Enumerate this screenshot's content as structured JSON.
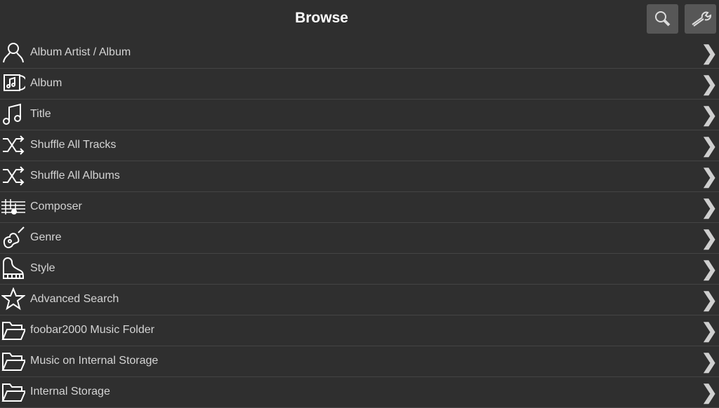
{
  "header": {
    "title": "Browse",
    "search_icon": "search-icon",
    "settings_icon": "wrench-icon"
  },
  "items": [
    {
      "label": "Album Artist / Album",
      "icon": "person"
    },
    {
      "label": "Album",
      "icon": "album"
    },
    {
      "label": "Title",
      "icon": "note"
    },
    {
      "label": "Shuffle All Tracks",
      "icon": "shuffle"
    },
    {
      "label": "Shuffle All Albums",
      "icon": "shuffle"
    },
    {
      "label": "Composer",
      "icon": "staff"
    },
    {
      "label": "Genre",
      "icon": "guitar"
    },
    {
      "label": "Style",
      "icon": "piano"
    },
    {
      "label": "Advanced Search",
      "icon": "star"
    },
    {
      "label": "foobar2000 Music Folder",
      "icon": "folder"
    },
    {
      "label": "Music on Internal Storage",
      "icon": "folder"
    },
    {
      "label": "Internal Storage",
      "icon": "folder"
    }
  ],
  "chevron": "❯"
}
